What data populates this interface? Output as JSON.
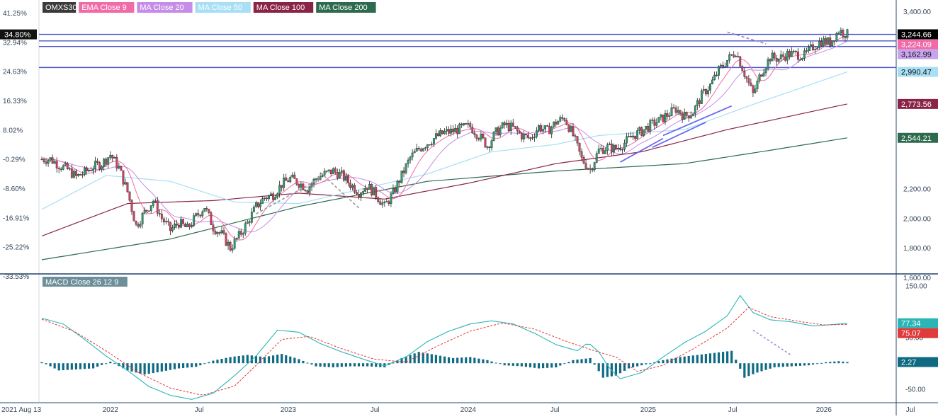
{
  "chart_data": [
    {
      "type": "candlestick",
      "symbol": "OMXS30",
      "indicators": [
        "EMA Close 9",
        "MA Close 20",
        "MA Close 50",
        "MA Close 100",
        "MA Close 200"
      ],
      "left_axis_labels": [
        "41.25%",
        "32.94%",
        "24.63%",
        "16.33%",
        "8.02%",
        "-0.29%",
        "-8.60%",
        "-16.91%",
        "-25.22%",
        "-33.53%"
      ],
      "left_axis_current": "34.80%",
      "right_axis_labels": [
        "3,400.00",
        "2,200.00",
        "2,000.00",
        "1,800.00",
        "1,600.00"
      ],
      "right_axis_ticks": [
        3400,
        2200,
        2000,
        1800,
        1600
      ],
      "ylim": [
        1600,
        3400
      ],
      "x_axis_labels": [
        "2021 Aug 13",
        "2022",
        "Jul",
        "2023",
        "Jul",
        "2024",
        "Jul",
        "2025",
        "Jul",
        "2026",
        "Jul"
      ],
      "price_tags": [
        {
          "label": "3,244.66",
          "value": 3244.66,
          "color": "#000000"
        },
        {
          "label": "3,224.09",
          "value": 3224.09,
          "color": "#f06ba8"
        },
        {
          "label": "3,162.99",
          "value": 3162.99,
          "color": "#c9a4ee"
        },
        {
          "label": "2,990.47",
          "value": 2990.47,
          "color": "#a8dff5"
        },
        {
          "label": "2,773.56",
          "value": 2773.56,
          "color": "#8a2446"
        },
        {
          "label": "2,544.21",
          "value": 2544.21,
          "color": "#2e6b4e"
        }
      ],
      "horizontal_levels": [
        3244,
        3200,
        3162,
        3020
      ],
      "close_series": [
        [
          0,
          2400
        ],
        [
          4,
          2400
        ],
        [
          8,
          2360
        ],
        [
          12,
          2330
        ],
        [
          16,
          2280
        ],
        [
          20,
          2310
        ],
        [
          24,
          2350
        ],
        [
          28,
          2370
        ],
        [
          32,
          2430
        ],
        [
          36,
          2340
        ],
        [
          40,
          2180
        ],
        [
          44,
          1950
        ],
        [
          48,
          2040
        ],
        [
          52,
          2120
        ],
        [
          56,
          2000
        ],
        [
          60,
          1920
        ],
        [
          64,
          1970
        ],
        [
          68,
          1930
        ],
        [
          72,
          2010
        ],
        [
          76,
          2080
        ],
        [
          80,
          1940
        ],
        [
          84,
          1890
        ],
        [
          88,
          1800
        ],
        [
          92,
          1880
        ],
        [
          96,
          1970
        ],
        [
          100,
          2080
        ],
        [
          104,
          2140
        ],
        [
          108,
          2160
        ],
        [
          112,
          2230
        ],
        [
          116,
          2270
        ],
        [
          120,
          2240
        ],
        [
          124,
          2200
        ],
        [
          128,
          2270
        ],
        [
          132,
          2300
        ],
        [
          136,
          2320
        ],
        [
          140,
          2290
        ],
        [
          144,
          2230
        ],
        [
          148,
          2180
        ],
        [
          152,
          2220
        ],
        [
          156,
          2160
        ],
        [
          160,
          2080
        ],
        [
          164,
          2170
        ],
        [
          168,
          2290
        ],
        [
          172,
          2410
        ],
        [
          176,
          2470
        ],
        [
          180,
          2510
        ],
        [
          184,
          2550
        ],
        [
          188,
          2580
        ],
        [
          192,
          2590
        ],
        [
          196,
          2610
        ],
        [
          200,
          2620
        ],
        [
          204,
          2560
        ],
        [
          208,
          2490
        ],
        [
          212,
          2580
        ],
        [
          216,
          2630
        ],
        [
          220,
          2610
        ],
        [
          224,
          2560
        ],
        [
          228,
          2540
        ],
        [
          232,
          2620
        ],
        [
          236,
          2590
        ],
        [
          240,
          2650
        ],
        [
          244,
          2680
        ],
        [
          248,
          2560
        ],
        [
          252,
          2400
        ],
        [
          256,
          2330
        ],
        [
          260,
          2460
        ],
        [
          264,
          2480
        ],
        [
          268,
          2470
        ],
        [
          272,
          2510
        ],
        [
          276,
          2560
        ],
        [
          280,
          2590
        ],
        [
          284,
          2630
        ],
        [
          288,
          2660
        ],
        [
          292,
          2700
        ],
        [
          296,
          2740
        ],
        [
          300,
          2690
        ],
        [
          304,
          2720
        ],
        [
          308,
          2830
        ],
        [
          312,
          2900
        ],
        [
          316,
          3000
        ],
        [
          320,
          3070
        ],
        [
          324,
          3130
        ],
        [
          328,
          2980
        ],
        [
          332,
          2840
        ],
        [
          336,
          2990
        ],
        [
          340,
          3090
        ],
        [
          344,
          3080
        ],
        [
          348,
          3110
        ],
        [
          352,
          3110
        ],
        [
          356,
          3100
        ],
        [
          360,
          3160
        ],
        [
          364,
          3200
        ],
        [
          368,
          3190
        ],
        [
          372,
          3270
        ],
        [
          376,
          3244.66
        ]
      ],
      "overlay_series": [
        {
          "name": "MA Close 200",
          "color": "#2e6b4e",
          "points": [
            [
              0,
              1720
            ],
            [
              60,
              1860
            ],
            [
              120,
              2080
            ],
            [
              180,
              2250
            ],
            [
              240,
              2320
            ],
            [
              300,
              2370
            ],
            [
              340,
              2460
            ],
            [
              376,
              2544.21
            ]
          ]
        },
        {
          "name": "MA Close 100",
          "color": "#8a2446",
          "points": [
            [
              0,
              1880
            ],
            [
              40,
              2100
            ],
            [
              80,
              2120
            ],
            [
              120,
              2170
            ],
            [
              160,
              2130
            ],
            [
              200,
              2240
            ],
            [
              240,
              2370
            ],
            [
              280,
              2450
            ],
            [
              320,
              2600
            ],
            [
              376,
              2773.56
            ]
          ]
        },
        {
          "name": "MA Close 50",
          "color": "#a8dff5",
          "points": [
            [
              0,
              2060
            ],
            [
              30,
              2290
            ],
            [
              60,
              2250
            ],
            [
              90,
              2110
            ],
            [
              120,
              2100
            ],
            [
              150,
              2200
            ],
            [
              180,
              2300
            ],
            [
              210,
              2450
            ],
            [
              240,
              2500
            ],
            [
              260,
              2560
            ],
            [
              300,
              2600
            ],
            [
              330,
              2760
            ],
            [
              376,
              2990.47
            ]
          ]
        }
      ],
      "trendlines": [
        {
          "from": [
            270,
            2380
          ],
          "to": [
            290,
            2540
          ],
          "dashed": false,
          "color": "#6a6af0"
        },
        {
          "from": [
            285,
            2480
          ],
          "to": [
            310,
            2650
          ],
          "dashed": false,
          "color": "#6a6af0"
        },
        {
          "from": [
            290,
            2560
          ],
          "to": [
            322,
            2760
          ],
          "dashed": false,
          "color": "#6a6af0"
        },
        {
          "from": [
            100,
            2030
          ],
          "to": [
            130,
            2270
          ],
          "dashed": true,
          "color": "#999999"
        },
        {
          "from": [
            130,
            2310
          ],
          "to": [
            148,
            2070
          ],
          "dashed": true,
          "color": "#999999"
        },
        {
          "from": [
            320,
            3260
          ],
          "to": [
            338,
            3180
          ],
          "dashed": true,
          "color": "#9b7bd9"
        }
      ]
    },
    {
      "type": "macd",
      "title": "MACD Close 26 12 9",
      "right_axis_labels": [
        "150.00",
        "50.00",
        "-50.00"
      ],
      "right_axis_ticks": [
        150,
        50,
        -50
      ],
      "ylim": [
        -75,
        170
      ],
      "price_tags": [
        {
          "label": "77.34",
          "value": 77.34,
          "color": "#2cb5b5"
        },
        {
          "label": "75.07",
          "value": 75.07,
          "color": "#e03a3a"
        },
        {
          "label": "2.27",
          "value": 2.27,
          "color": "#0f6a82"
        }
      ],
      "macd_series": [
        [
          0,
          87
        ],
        [
          10,
          76
        ],
        [
          20,
          46
        ],
        [
          30,
          14
        ],
        [
          40,
          -14
        ],
        [
          50,
          -45
        ],
        [
          60,
          -62
        ],
        [
          70,
          -70
        ],
        [
          80,
          -58
        ],
        [
          90,
          -24
        ],
        [
          100,
          14
        ],
        [
          110,
          64
        ],
        [
          120,
          60
        ],
        [
          130,
          38
        ],
        [
          140,
          22
        ],
        [
          150,
          8
        ],
        [
          160,
          -5
        ],
        [
          170,
          12
        ],
        [
          180,
          42
        ],
        [
          190,
          62
        ],
        [
          200,
          76
        ],
        [
          210,
          82
        ],
        [
          220,
          76
        ],
        [
          230,
          58
        ],
        [
          240,
          36
        ],
        [
          250,
          24
        ],
        [
          255,
          40
        ],
        [
          260,
          22
        ],
        [
          265,
          -10
        ],
        [
          270,
          -30
        ],
        [
          280,
          -18
        ],
        [
          290,
          12
        ],
        [
          300,
          40
        ],
        [
          310,
          62
        ],
        [
          320,
          92
        ],
        [
          326,
          131
        ],
        [
          332,
          98
        ],
        [
          340,
          84
        ],
        [
          350,
          80
        ],
        [
          360,
          72
        ],
        [
          370,
          75
        ],
        [
          376,
          77.34
        ]
      ],
      "signal_series": [
        [
          0,
          85
        ],
        [
          15,
          62
        ],
        [
          30,
          24
        ],
        [
          45,
          -18
        ],
        [
          60,
          -48
        ],
        [
          75,
          -62
        ],
        [
          90,
          -44
        ],
        [
          100,
          -4
        ],
        [
          112,
          46
        ],
        [
          125,
          52
        ],
        [
          140,
          28
        ],
        [
          155,
          8
        ],
        [
          170,
          2
        ],
        [
          185,
          34
        ],
        [
          200,
          62
        ],
        [
          215,
          78
        ],
        [
          230,
          66
        ],
        [
          245,
          42
        ],
        [
          258,
          24
        ],
        [
          268,
          12
        ],
        [
          278,
          -16
        ],
        [
          290,
          -4
        ],
        [
          305,
          30
        ],
        [
          320,
          68
        ],
        [
          330,
          108
        ],
        [
          340,
          90
        ],
        [
          355,
          80
        ],
        [
          365,
          74
        ],
        [
          376,
          75.07
        ]
      ],
      "histogram": [
        [
          0,
          2
        ],
        [
          8,
          -14
        ],
        [
          16,
          -12
        ],
        [
          24,
          -10
        ],
        [
          32,
          3
        ],
        [
          40,
          -14
        ],
        [
          48,
          -22
        ],
        [
          56,
          -16
        ],
        [
          64,
          -10
        ],
        [
          72,
          -7
        ],
        [
          80,
          5
        ],
        [
          88,
          12
        ],
        [
          96,
          16
        ],
        [
          104,
          12
        ],
        [
          112,
          18
        ],
        [
          120,
          8
        ],
        [
          128,
          -6
        ],
        [
          136,
          -8
        ],
        [
          144,
          -6
        ],
        [
          152,
          -6
        ],
        [
          160,
          -8
        ],
        [
          168,
          10
        ],
        [
          176,
          22
        ],
        [
          184,
          16
        ],
        [
          192,
          10
        ],
        [
          200,
          12
        ],
        [
          208,
          6
        ],
        [
          216,
          -4
        ],
        [
          224,
          -6
        ],
        [
          232,
          -10
        ],
        [
          240,
          -8
        ],
        [
          248,
          6
        ],
        [
          256,
          10
        ],
        [
          262,
          -28
        ],
        [
          268,
          -24
        ],
        [
          274,
          -10
        ],
        [
          282,
          -2
        ],
        [
          290,
          6
        ],
        [
          298,
          12
        ],
        [
          306,
          16
        ],
        [
          314,
          20
        ],
        [
          322,
          24
        ],
        [
          328,
          -28
        ],
        [
          334,
          -18
        ],
        [
          342,
          -8
        ],
        [
          350,
          -6
        ],
        [
          358,
          -4
        ],
        [
          366,
          2
        ],
        [
          372,
          4
        ],
        [
          376,
          2.27
        ]
      ],
      "trendlines": [
        {
          "from": [
            332,
            64
          ],
          "to": [
            350,
            15
          ],
          "dashed": true,
          "color": "#9b7bd9"
        }
      ]
    }
  ]
}
